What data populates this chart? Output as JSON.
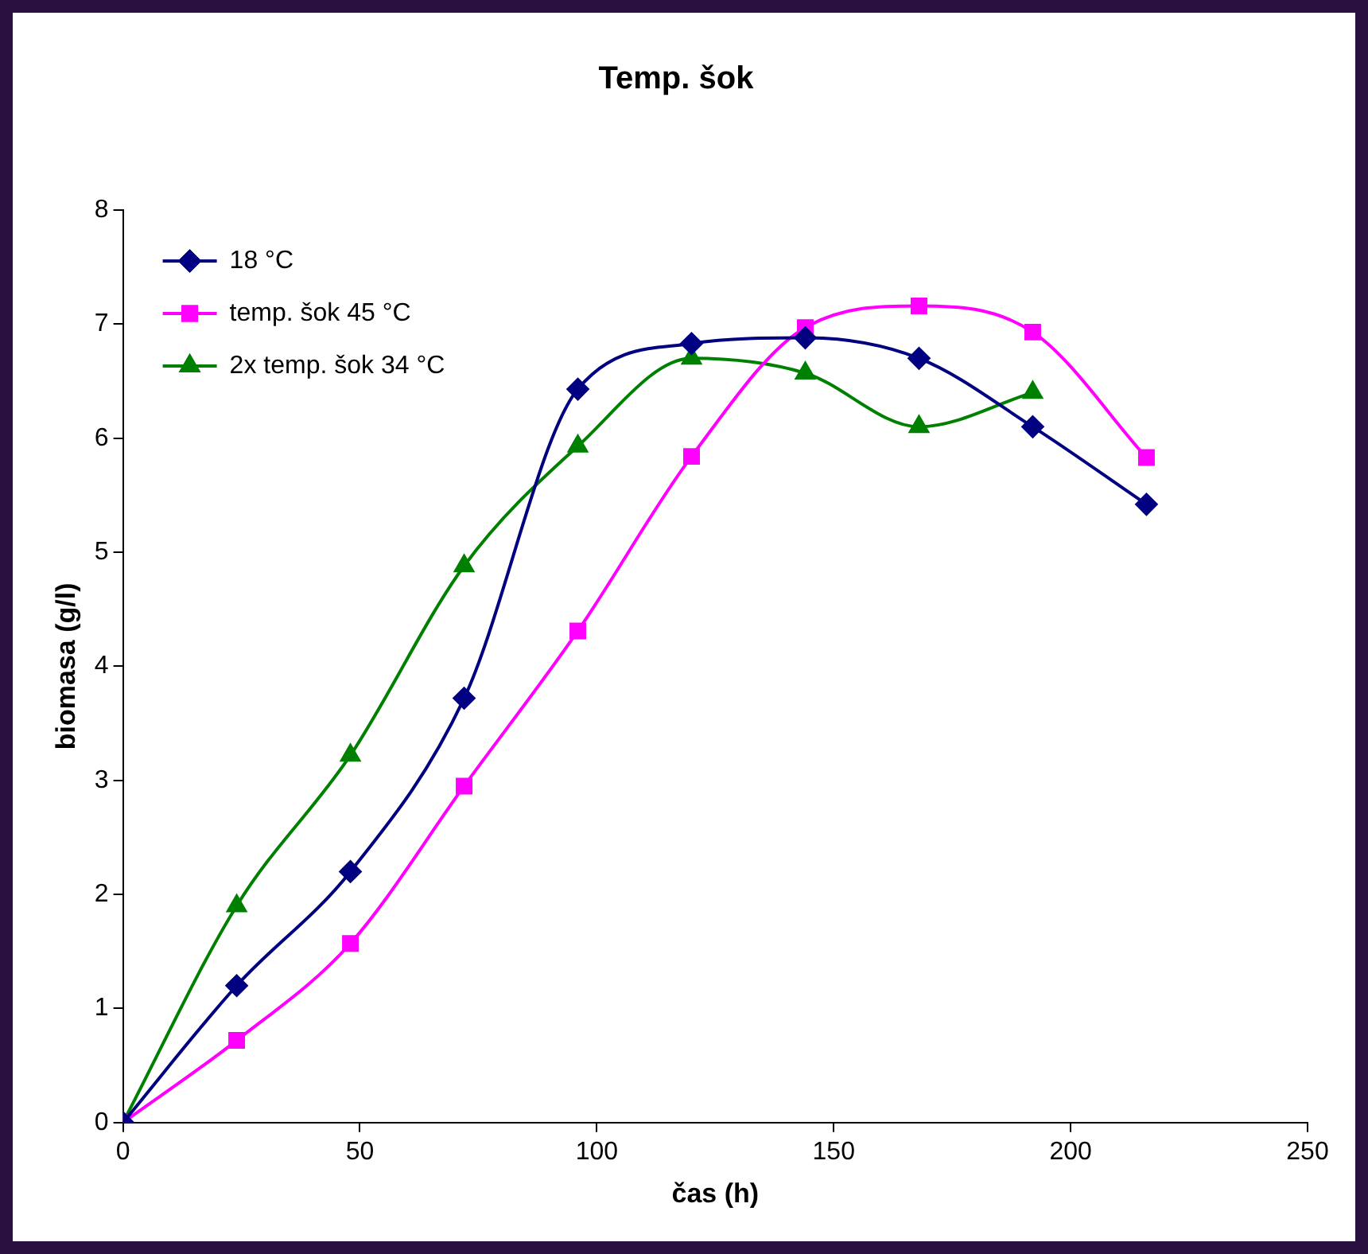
{
  "chart_data": {
    "type": "line",
    "title": "Temp. šok",
    "xlabel": "čas (h)",
    "ylabel": "biomasa (g/l)",
    "x": [
      0,
      24,
      48,
      72,
      96,
      120,
      144,
      168,
      192,
      216
    ],
    "series": [
      {
        "name": "18 °C",
        "color": "#000080",
        "marker": "diamond",
        "values": [
          0,
          1.2,
          2.2,
          3.72,
          6.43,
          6.83,
          6.88,
          6.7,
          6.1,
          5.42
        ]
      },
      {
        "name": "temp. šok 45 °C",
        "color": "#ff00ff",
        "marker": "square",
        "values": [
          0,
          0.72,
          1.57,
          2.95,
          4.31,
          5.84,
          6.97,
          7.16,
          6.93,
          5.83
        ]
      },
      {
        "name": "2x temp. šok 34 °C",
        "color": "#008000",
        "marker": "triangle",
        "values": [
          0,
          1.9,
          3.22,
          4.88,
          5.93,
          6.7,
          6.57,
          6.1,
          6.4,
          null
        ]
      }
    ],
    "xlim": [
      0,
      250
    ],
    "xticks": [
      0,
      50,
      100,
      150,
      200,
      250
    ],
    "ylim": [
      0,
      8
    ],
    "yticks": [
      0,
      1,
      2,
      3,
      4,
      5,
      6,
      7,
      8
    ],
    "grid": false,
    "legend": "top left",
    "line_style": "solid"
  }
}
